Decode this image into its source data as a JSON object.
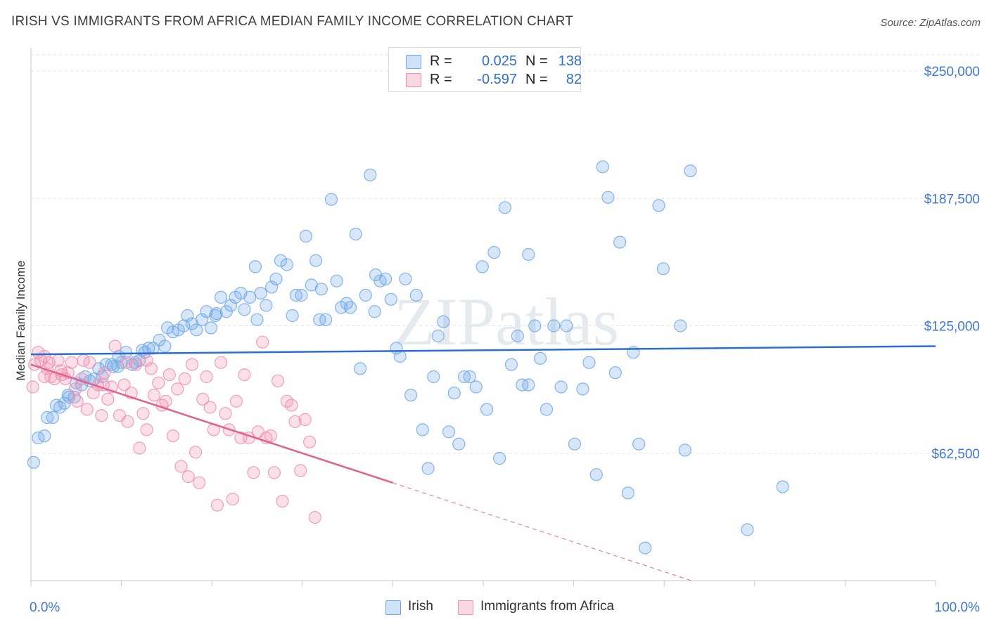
{
  "title": "IRISH VS IMMIGRANTS FROM AFRICA MEDIAN FAMILY INCOME CORRELATION CHART",
  "source": "Source: ZipAtlas.com",
  "watermark": "ZIPatlas",
  "stats": [
    {
      "r_label": "R =",
      "r_value": "0.025",
      "n_label": "N =",
      "n_value": "138",
      "color": "#6fa8e8"
    },
    {
      "r_label": "R =",
      "r_value": "-0.597",
      "n_label": "N =",
      "n_value": "82",
      "color": "#f08fb0"
    }
  ],
  "legend": [
    {
      "label": "Irish",
      "color": "#6fa8e8"
    },
    {
      "label": "Immigrants from Africa",
      "color": "#f08fb0"
    }
  ],
  "chart_data": {
    "type": "scatter",
    "title": "IRISH VS IMMIGRANTS FROM AFRICA MEDIAN FAMILY INCOME CORRELATION CHART",
    "xlabel": "",
    "ylabel": "Median Family Income",
    "xlim": [
      0,
      100
    ],
    "ylim": [
      0,
      260000
    ],
    "x_tick_labels": [
      "0.0%",
      "100.0%"
    ],
    "y_ticks": [
      62500,
      125000,
      187500,
      250000
    ],
    "y_tick_labels": [
      "$62,500",
      "$125,000",
      "$187,500",
      "$250,000"
    ],
    "grid": true,
    "legend_position": "bottom-center",
    "series": [
      {
        "name": "Irish",
        "color": "#6fa8e8",
        "trend_color": "#2a6fd0",
        "trend": [
          [
            0,
            111000
          ],
          [
            100,
            115000
          ]
        ],
        "points": [
          [
            0.3,
            58000
          ],
          [
            0.8,
            70000
          ],
          [
            1.5,
            71000
          ],
          [
            1.8,
            80000
          ],
          [
            2.4,
            80000
          ],
          [
            2.8,
            86000
          ],
          [
            3.2,
            85000
          ],
          [
            3.7,
            87000
          ],
          [
            4.1,
            91000
          ],
          [
            4.8,
            90000
          ],
          [
            5.0,
            97000
          ],
          [
            5.6,
            96000
          ],
          [
            6.0,
            100000
          ],
          [
            6.5,
            98000
          ],
          [
            7.0,
            99000
          ],
          [
            7.5,
            104000
          ],
          [
            7.9,
            100000
          ],
          [
            8.3,
            106000
          ],
          [
            8.9,
            106000
          ],
          [
            9.1,
            105000
          ],
          [
            9.6,
            105000
          ],
          [
            10.0,
            107000
          ],
          [
            10.5,
            112000
          ],
          [
            11.2,
            106000
          ],
          [
            11.5,
            107000
          ],
          [
            12.0,
            108000
          ],
          [
            12.6,
            112000
          ],
          [
            13.0,
            114000
          ],
          [
            13.5,
            114000
          ],
          [
            14.2,
            118000
          ],
          [
            14.8,
            115000
          ],
          [
            15.1,
            124000
          ],
          [
            15.7,
            122000
          ],
          [
            16.3,
            123000
          ],
          [
            16.9,
            125000
          ],
          [
            17.3,
            130000
          ],
          [
            17.8,
            126000
          ],
          [
            18.3,
            123000
          ],
          [
            18.9,
            128000
          ],
          [
            19.4,
            132000
          ],
          [
            19.9,
            124000
          ],
          [
            20.5,
            131000
          ],
          [
            21.0,
            139000
          ],
          [
            21.6,
            132000
          ],
          [
            22.1,
            135000
          ],
          [
            22.6,
            139000
          ],
          [
            23.2,
            141000
          ],
          [
            23.6,
            133000
          ],
          [
            24.2,
            139000
          ],
          [
            24.8,
            154000
          ],
          [
            25.4,
            141000
          ],
          [
            26.0,
            135000
          ],
          [
            26.6,
            144000
          ],
          [
            27.1,
            148000
          ],
          [
            27.6,
            157000
          ],
          [
            28.3,
            155000
          ],
          [
            28.9,
            130000
          ],
          [
            29.3,
            140000
          ],
          [
            29.9,
            140000
          ],
          [
            30.4,
            169000
          ],
          [
            31.0,
            145000
          ],
          [
            31.5,
            157000
          ],
          [
            32.1,
            143000
          ],
          [
            32.6,
            128000
          ],
          [
            33.2,
            187000
          ],
          [
            33.8,
            147000
          ],
          [
            34.3,
            134000
          ],
          [
            34.9,
            136000
          ],
          [
            35.3,
            134000
          ],
          [
            35.9,
            170000
          ],
          [
            36.4,
            104000
          ],
          [
            37.0,
            140000
          ],
          [
            37.5,
            199000
          ],
          [
            38.1,
            150000
          ],
          [
            38.6,
            147000
          ],
          [
            39.2,
            148000
          ],
          [
            39.8,
            138000
          ],
          [
            40.4,
            114000
          ],
          [
            40.8,
            110000
          ],
          [
            41.4,
            148000
          ],
          [
            42.0,
            91000
          ],
          [
            42.6,
            140000
          ],
          [
            43.3,
            74000
          ],
          [
            43.9,
            55000
          ],
          [
            44.5,
            100000
          ],
          [
            45.0,
            120000
          ],
          [
            45.6,
            127000
          ],
          [
            46.2,
            73000
          ],
          [
            46.8,
            92000
          ],
          [
            47.3,
            67000
          ],
          [
            47.9,
            100000
          ],
          [
            48.5,
            100000
          ],
          [
            49.2,
            95000
          ],
          [
            49.9,
            154000
          ],
          [
            50.4,
            84000
          ],
          [
            51.2,
            161000
          ],
          [
            51.8,
            60000
          ],
          [
            52.4,
            183000
          ],
          [
            53.1,
            106000
          ],
          [
            53.8,
            120000
          ],
          [
            54.3,
            96000
          ],
          [
            55.0,
            96000
          ],
          [
            55.7,
            125000
          ],
          [
            56.3,
            109000
          ],
          [
            57.0,
            84000
          ],
          [
            57.8,
            125000
          ],
          [
            58.6,
            95000
          ],
          [
            59.2,
            125000
          ],
          [
            60.1,
            67000
          ],
          [
            61.0,
            94000
          ],
          [
            61.7,
            107000
          ],
          [
            62.5,
            52000
          ],
          [
            63.2,
            203000
          ],
          [
            63.8,
            188000
          ],
          [
            64.6,
            102000
          ],
          [
            65.1,
            166000
          ],
          [
            66.0,
            43000
          ],
          [
            66.6,
            112000
          ],
          [
            67.2,
            67000
          ],
          [
            67.9,
            16000
          ],
          [
            69.4,
            184000
          ],
          [
            69.9,
            153000
          ],
          [
            71.8,
            125000
          ],
          [
            72.3,
            64000
          ],
          [
            72.9,
            201000
          ],
          [
            79.2,
            25000
          ],
          [
            83.1,
            46000
          ],
          [
            4.2,
            90000
          ],
          [
            9.7,
            110000
          ],
          [
            12.3,
            113000
          ],
          [
            20.4,
            130000
          ],
          [
            25.0,
            128000
          ],
          [
            31.9,
            128000
          ],
          [
            38.0,
            132000
          ],
          [
            55.0,
            160000
          ]
        ]
      },
      {
        "name": "Immigrants from Africa",
        "color": "#f08fb0",
        "trend_color": "#e0608e",
        "trend": [
          [
            0,
            106000
          ],
          [
            40,
            48000
          ]
        ],
        "trend_dashed": [
          [
            40,
            48000
          ],
          [
            73,
            0
          ]
        ],
        "points": [
          [
            0.4,
            106000
          ],
          [
            0.8,
            112000
          ],
          [
            1.1,
            108000
          ],
          [
            1.5,
            110000
          ],
          [
            1.8,
            104000
          ],
          [
            2.2,
            100000
          ],
          [
            2.6,
            99000
          ],
          [
            3.0,
            108000
          ],
          [
            3.3,
            103000
          ],
          [
            3.8,
            99000
          ],
          [
            4.1,
            102000
          ],
          [
            4.5,
            107000
          ],
          [
            4.9,
            94000
          ],
          [
            5.1,
            88000
          ],
          [
            5.6,
            99000
          ],
          [
            6.2,
            84000
          ],
          [
            6.5,
            107000
          ],
          [
            6.9,
            92000
          ],
          [
            7.4,
            96000
          ],
          [
            7.8,
            81000
          ],
          [
            8.1,
            102000
          ],
          [
            8.5,
            89000
          ],
          [
            8.9,
            95000
          ],
          [
            9.3,
            115000
          ],
          [
            9.8,
            81000
          ],
          [
            10.3,
            96000
          ],
          [
            10.7,
            78000
          ],
          [
            11.1,
            92000
          ],
          [
            11.6,
            106000
          ],
          [
            12.0,
            65000
          ],
          [
            12.4,
            82000
          ],
          [
            12.8,
            74000
          ],
          [
            13.3,
            104000
          ],
          [
            13.6,
            91000
          ],
          [
            14.1,
            97000
          ],
          [
            14.5,
            86000
          ],
          [
            14.9,
            88000
          ],
          [
            15.3,
            101000
          ],
          [
            15.7,
            71000
          ],
          [
            16.2,
            94000
          ],
          [
            16.6,
            56000
          ],
          [
            17.0,
            99000
          ],
          [
            17.4,
            51000
          ],
          [
            17.8,
            106000
          ],
          [
            18.2,
            63000
          ],
          [
            18.6,
            48000
          ],
          [
            19.0,
            89000
          ],
          [
            19.4,
            100000
          ],
          [
            19.8,
            85000
          ],
          [
            20.2,
            74000
          ],
          [
            20.6,
            37000
          ],
          [
            21.0,
            107000
          ],
          [
            21.5,
            82000
          ],
          [
            21.9,
            74000
          ],
          [
            22.3,
            40000
          ],
          [
            22.7,
            88000
          ],
          [
            23.2,
            70000
          ],
          [
            23.6,
            101000
          ],
          [
            24.1,
            70000
          ],
          [
            24.6,
            53000
          ],
          [
            25.1,
            73000
          ],
          [
            25.6,
            117000
          ],
          [
            26.0,
            70000
          ],
          [
            26.5,
            71000
          ],
          [
            26.9,
            53000
          ],
          [
            27.3,
            98000
          ],
          [
            27.8,
            39000
          ],
          [
            28.3,
            88000
          ],
          [
            28.8,
            86000
          ],
          [
            29.2,
            78000
          ],
          [
            29.8,
            54000
          ],
          [
            30.3,
            79000
          ],
          [
            30.8,
            68000
          ],
          [
            31.4,
            31000
          ],
          [
            0.2,
            95000
          ],
          [
            1.5,
            100000
          ],
          [
            2.0,
            107000
          ],
          [
            3.4,
            101000
          ],
          [
            5.8,
            108000
          ],
          [
            8.0,
            96000
          ],
          [
            10.5,
            107000
          ],
          [
            12.8,
            108000
          ]
        ]
      }
    ]
  }
}
